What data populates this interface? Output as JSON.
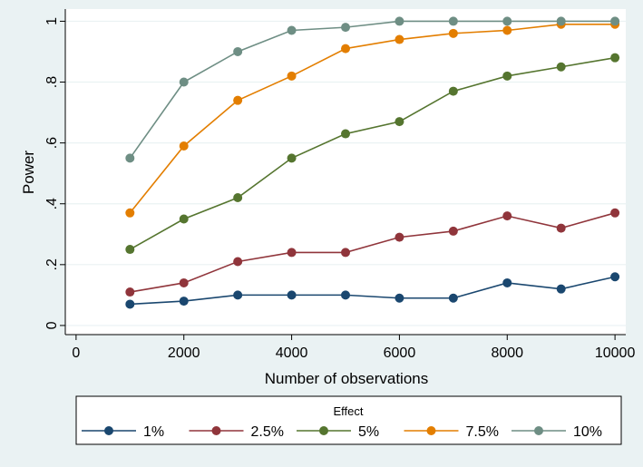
{
  "chart_data": {
    "type": "line",
    "title": "",
    "xlabel": "Number of observations",
    "ylabel": "Power",
    "xlim": [
      -200,
      10200
    ],
    "ylim": [
      -0.03,
      1.04
    ],
    "xticks": [
      0,
      2000,
      4000,
      6000,
      8000,
      10000
    ],
    "xtick_labels": [
      "0",
      "2000",
      "4000",
      "6000",
      "8000",
      "10000"
    ],
    "yticks": [
      0,
      0.2,
      0.4,
      0.6,
      0.8,
      1
    ],
    "ytick_labels": [
      "0",
      ".2",
      ".4",
      ".6",
      ".8",
      "1"
    ],
    "grid": true,
    "legend": {
      "title": "Effect",
      "position": "bottom"
    },
    "x": [
      1000,
      2000,
      3000,
      4000,
      5000,
      6000,
      7000,
      8000,
      9000,
      10000
    ],
    "series": [
      {
        "name": "1%",
        "color": "#1a476f",
        "values": [
          0.07,
          0.08,
          0.1,
          0.1,
          0.1,
          0.09,
          0.09,
          0.14,
          0.12,
          0.16
        ]
      },
      {
        "name": "2.5%",
        "color": "#90353b",
        "values": [
          0.11,
          0.14,
          0.21,
          0.24,
          0.24,
          0.29,
          0.31,
          0.36,
          0.32,
          0.37
        ]
      },
      {
        "name": "5%",
        "color": "#55752f",
        "values": [
          0.25,
          0.35,
          0.42,
          0.55,
          0.63,
          0.67,
          0.77,
          0.82,
          0.85,
          0.88
        ]
      },
      {
        "name": "7.5%",
        "color": "#e37e00",
        "values": [
          0.37,
          0.59,
          0.74,
          0.82,
          0.91,
          0.94,
          0.96,
          0.97,
          0.99,
          0.99
        ]
      },
      {
        "name": "10%",
        "color": "#6e8e84",
        "values": [
          0.55,
          0.8,
          0.9,
          0.97,
          0.98,
          1.0,
          1.0,
          1.0,
          1.0,
          1.0
        ]
      }
    ]
  }
}
